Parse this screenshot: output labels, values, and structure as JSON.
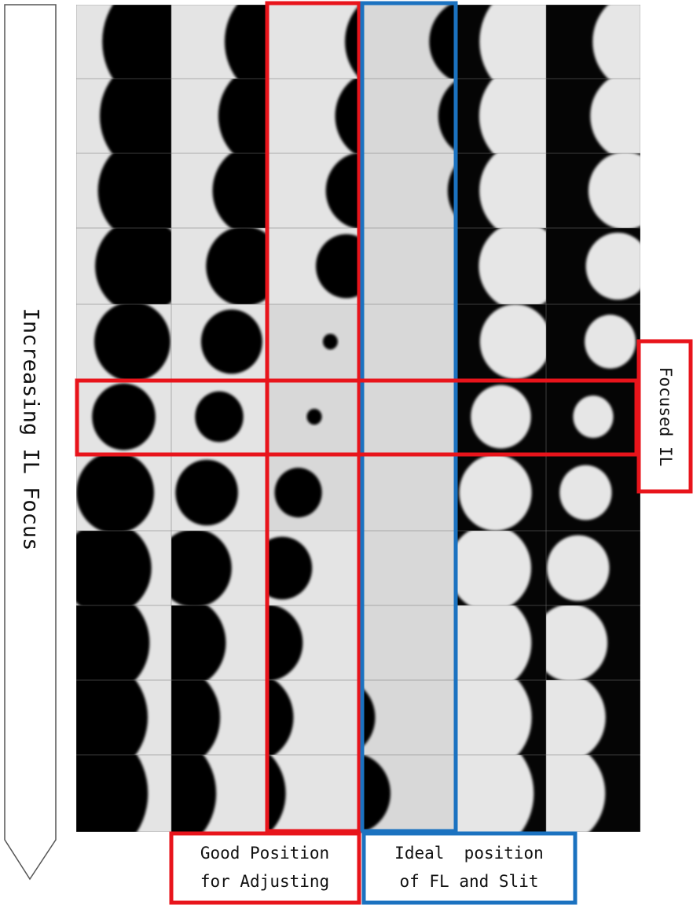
{
  "arrow_label": "Increasing IL Focus",
  "focused_label": "Focused IL",
  "good_position": [
    "Good Position",
    "for Adjusting"
  ],
  "ideal_position": [
    "Ideal  position",
    "of FL and Slit"
  ]
}
